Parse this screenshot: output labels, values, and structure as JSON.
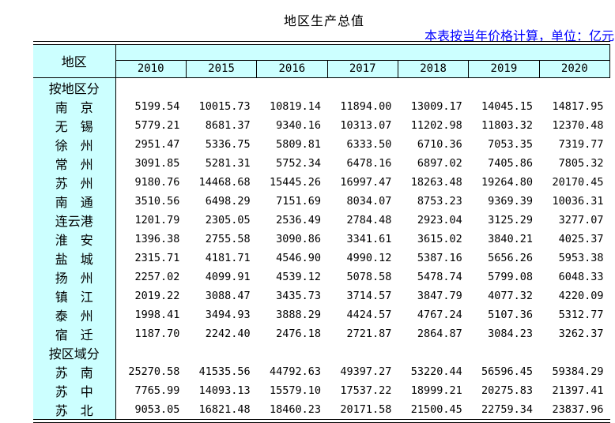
{
  "title": "地区生产总值",
  "note": "本表按当年价格计算，单位：亿元",
  "colors": {
    "header_fill": "#CCFFFF",
    "note_text": "#0000FF",
    "border": "#000000",
    "background": "#FFFFFF"
  },
  "chart_data": {
    "type": "table",
    "title": "地区生产总值",
    "unit_note": "本表按当年价格计算，单位：亿元",
    "columns": [
      "地区",
      "2010",
      "2015",
      "2016",
      "2017",
      "2018",
      "2019",
      "2020"
    ],
    "rows": [
      {
        "label": "按地区分",
        "display_label": "按地区分",
        "section": true,
        "values": [
          "",
          "",
          "",
          "",
          "",
          "",
          ""
        ]
      },
      {
        "label": "南京",
        "display_label": "南　京",
        "section": false,
        "values": [
          "5199.54",
          "10015.73",
          "10819.14",
          "11894.00",
          "13009.17",
          "14045.15",
          "14817.95"
        ]
      },
      {
        "label": "无锡",
        "display_label": "无　锡",
        "section": false,
        "values": [
          "5779.21",
          "8681.37",
          "9340.16",
          "10313.07",
          "11202.98",
          "11803.32",
          "12370.48"
        ]
      },
      {
        "label": "徐州",
        "display_label": "徐　州",
        "section": false,
        "values": [
          "2951.47",
          "5336.75",
          "5809.81",
          "6333.50",
          "6710.36",
          "7053.35",
          "7319.77"
        ]
      },
      {
        "label": "常州",
        "display_label": "常　州",
        "section": false,
        "values": [
          "3091.85",
          "5281.31",
          "5752.34",
          "6478.16",
          "6897.02",
          "7405.86",
          "7805.32"
        ]
      },
      {
        "label": "苏州",
        "display_label": "苏　州",
        "section": false,
        "values": [
          "9180.76",
          "14468.68",
          "15445.26",
          "16997.47",
          "18263.48",
          "19264.80",
          "20170.45"
        ]
      },
      {
        "label": "南通",
        "display_label": "南　通",
        "section": false,
        "values": [
          "3510.56",
          "6498.29",
          "7151.69",
          "8034.07",
          "8753.23",
          "9369.39",
          "10036.31"
        ]
      },
      {
        "label": "连云港",
        "display_label": "连云港",
        "section": false,
        "values": [
          "1201.79",
          "2305.05",
          "2536.49",
          "2784.48",
          "2923.04",
          "3125.29",
          "3277.07"
        ]
      },
      {
        "label": "淮安",
        "display_label": "淮　安",
        "section": false,
        "values": [
          "1396.38",
          "2755.58",
          "3090.86",
          "3341.61",
          "3615.02",
          "3840.21",
          "4025.37"
        ]
      },
      {
        "label": "盐城",
        "display_label": "盐　城",
        "section": false,
        "values": [
          "2315.71",
          "4181.71",
          "4546.90",
          "4990.12",
          "5387.16",
          "5656.26",
          "5953.38"
        ]
      },
      {
        "label": "扬州",
        "display_label": "扬　州",
        "section": false,
        "values": [
          "2257.02",
          "4099.91",
          "4539.12",
          "5078.58",
          "5478.74",
          "5799.08",
          "6048.33"
        ]
      },
      {
        "label": "镇江",
        "display_label": "镇　江",
        "section": false,
        "values": [
          "2019.22",
          "3088.47",
          "3435.73",
          "3714.57",
          "3847.79",
          "4077.32",
          "4220.09"
        ]
      },
      {
        "label": "泰州",
        "display_label": "泰　州",
        "section": false,
        "values": [
          "1998.41",
          "3494.93",
          "3888.29",
          "4424.57",
          "4767.24",
          "5107.36",
          "5312.77"
        ]
      },
      {
        "label": "宿迁",
        "display_label": "宿　迁",
        "section": false,
        "values": [
          "1187.70",
          "2242.40",
          "2476.18",
          "2721.87",
          "2864.87",
          "3084.23",
          "3262.37"
        ]
      },
      {
        "label": "按区域分",
        "display_label": "按区域分",
        "section": true,
        "values": [
          "",
          "",
          "",
          "",
          "",
          "",
          ""
        ]
      },
      {
        "label": "苏南",
        "display_label": "苏　南",
        "section": false,
        "values": [
          "25270.58",
          "41535.56",
          "44792.63",
          "49397.27",
          "53220.44",
          "56596.45",
          "59384.29"
        ]
      },
      {
        "label": "苏中",
        "display_label": "苏　中",
        "section": false,
        "values": [
          "7765.99",
          "14093.13",
          "15579.10",
          "17537.22",
          "18999.21",
          "20275.83",
          "21397.41"
        ]
      },
      {
        "label": "苏北",
        "display_label": "苏　北",
        "section": false,
        "values": [
          "9053.05",
          "16821.48",
          "18460.23",
          "20171.58",
          "21500.45",
          "22759.34",
          "23837.96"
        ]
      }
    ]
  }
}
